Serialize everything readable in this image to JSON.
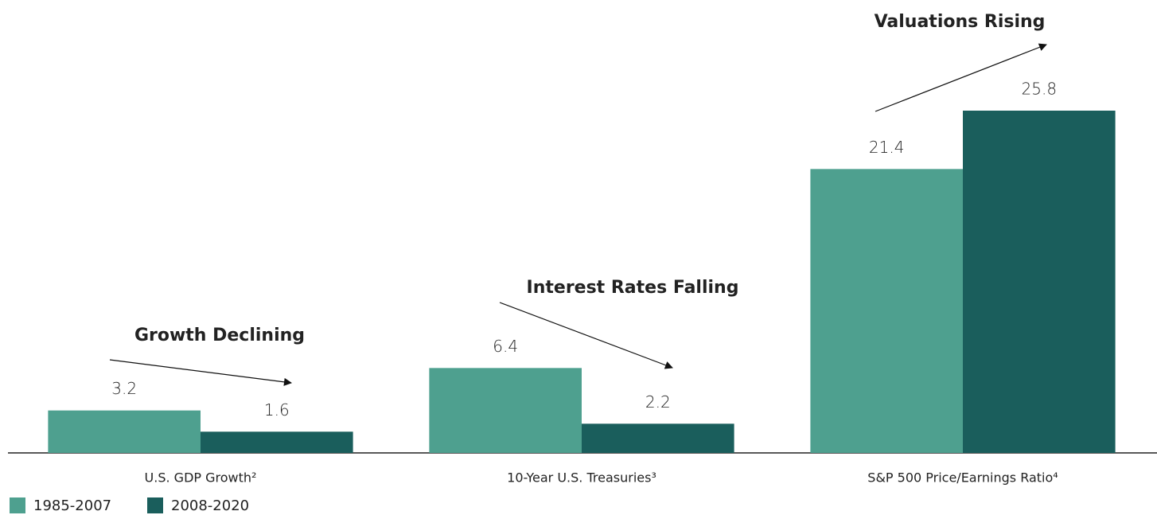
{
  "chart_data": {
    "type": "bar",
    "categories": [
      "U.S. GDP Growth²",
      "10-Year U.S. Treasuries³",
      "S&P 500 Price/Earnings Ratio⁴"
    ],
    "series": [
      {
        "name": "1985-2007",
        "color": "#4ea08f",
        "values": [
          3.2,
          6.4,
          21.4
        ]
      },
      {
        "name": "2008-2020",
        "color": "#1a5e5c",
        "values": [
          1.6,
          2.2,
          25.8
        ]
      }
    ],
    "ylim": [
      0,
      30
    ],
    "annotations": [
      "Growth Declining",
      "Interest Rates Falling",
      "Valuations Rising"
    ]
  }
}
